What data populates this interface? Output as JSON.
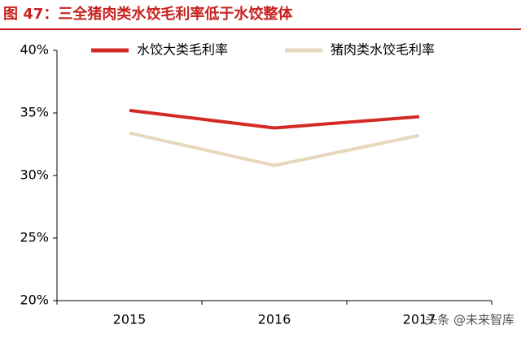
{
  "chart_data": {
    "type": "line",
    "title": "图 47：三全猪肉类水饺毛利率低于水饺整体",
    "categories": [
      "2015",
      "2016",
      "2017"
    ],
    "series": [
      {
        "name": "水饺大类毛利率",
        "color": "#d42a26",
        "values": [
          35.2,
          33.8,
          34.7
        ]
      },
      {
        "name": "猪肉类水饺毛利率",
        "color": "#e6d7bd",
        "values": [
          33.4,
          30.8,
          33.2
        ]
      }
    ],
    "ylim": [
      20,
      40
    ],
    "yticks": [
      {
        "value": 20,
        "label": "20%"
      },
      {
        "value": 25,
        "label": "25%"
      },
      {
        "value": 30,
        "label": "30%"
      },
      {
        "value": 35,
        "label": "35%"
      },
      {
        "value": 40,
        "label": "40%"
      }
    ],
    "legend": "top",
    "watermark": "头条 @未来智库"
  }
}
